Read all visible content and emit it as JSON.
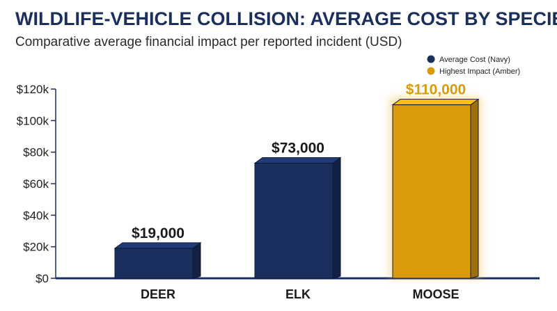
{
  "chart_data": {
    "type": "bar",
    "title": "WILDLIFE-VEHICLE COLLISION: AVERAGE COST BY SPECIES",
    "subtitle": "Comparative average financial impact per reported incident (USD)",
    "categories": [
      "DEER",
      "ELK",
      "MOOSE"
    ],
    "values": [
      19000,
      73000,
      110000
    ],
    "value_labels": [
      "$19,000",
      "$73,000",
      "$110,000"
    ],
    "bar_colors": [
      "#1b2f5e",
      "#1b2f5e",
      "#d99a0b"
    ],
    "yticks": [
      0,
      20000,
      40000,
      60000,
      80000,
      100000,
      120000
    ],
    "ytick_labels": [
      "$0",
      "$20k",
      "$40k",
      "$60k",
      "$80k",
      "$100k",
      "$120k"
    ],
    "ylim": [
      0,
      120000
    ],
    "xlabel": "",
    "ylabel": "",
    "grid": false,
    "legend_position": "top-right",
    "legend": [
      {
        "label": "Average Cost (Navy)",
        "color": "#1b2f5e"
      },
      {
        "label": "Highest Impact (Amber)",
        "color": "#d99a0b"
      }
    ]
  }
}
